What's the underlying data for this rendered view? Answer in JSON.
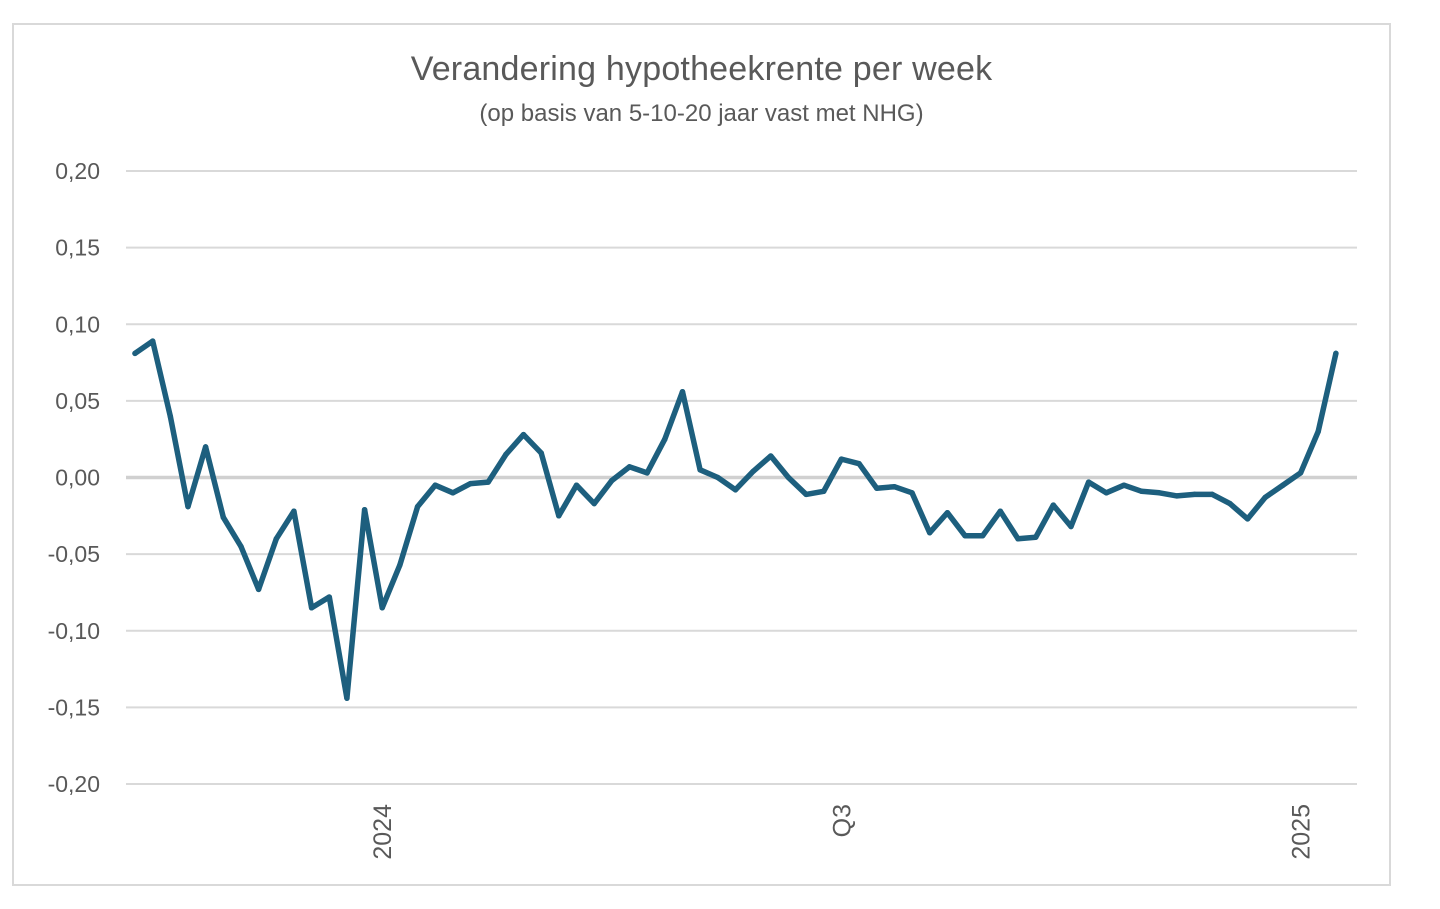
{
  "chart_data": {
    "type": "line",
    "title": "Verandering hypotheekrente per week",
    "subtitle": "(op basis van 5-10-20 jaar vast met NHG)",
    "xlabel": "",
    "ylabel": "",
    "ylim": [
      -0.2,
      0.2
    ],
    "y_ticks": [
      "0,20",
      "0,15",
      "0,10",
      "0,05",
      "0,00",
      "-0,05",
      "-0,10",
      "-0,15",
      "-0,20"
    ],
    "y_tick_values": [
      0.2,
      0.15,
      0.1,
      0.05,
      0.0,
      -0.05,
      -0.1,
      -0.15,
      -0.2
    ],
    "x_ticks": [
      {
        "label": "2024",
        "index": 14
      },
      {
        "label": "Q3",
        "index": 40
      },
      {
        "label": "2025",
        "index": 66
      }
    ],
    "grid": true,
    "legend": "none",
    "series_color": "#1d5f7e",
    "grid_color": "#d9d9d9",
    "zero_line_color": "#d0d0d0",
    "series": [
      {
        "values": [
          0.081,
          0.089,
          0.04,
          -0.019,
          0.02,
          -0.026,
          -0.045,
          -0.073,
          -0.04,
          -0.022,
          -0.085,
          -0.078,
          -0.144,
          -0.021,
          -0.085,
          -0.057,
          -0.019,
          -0.005,
          -0.01,
          -0.004,
          -0.003,
          0.015,
          0.028,
          0.016,
          -0.025,
          -0.005,
          -0.017,
          -0.002,
          0.007,
          0.003,
          0.025,
          0.056,
          0.005,
          0.0,
          -0.008,
          0.004,
          0.014,
          0.0,
          -0.011,
          -0.009,
          0.012,
          0.009,
          -0.007,
          -0.006,
          -0.01,
          -0.036,
          -0.023,
          -0.038,
          -0.038,
          -0.022,
          -0.04,
          -0.039,
          -0.018,
          -0.032,
          -0.003,
          -0.01,
          -0.005,
          -0.009,
          -0.01,
          -0.012,
          -0.011,
          -0.011,
          -0.017,
          -0.027,
          -0.013,
          -0.005,
          0.003,
          0.03,
          0.081
        ]
      }
    ]
  }
}
